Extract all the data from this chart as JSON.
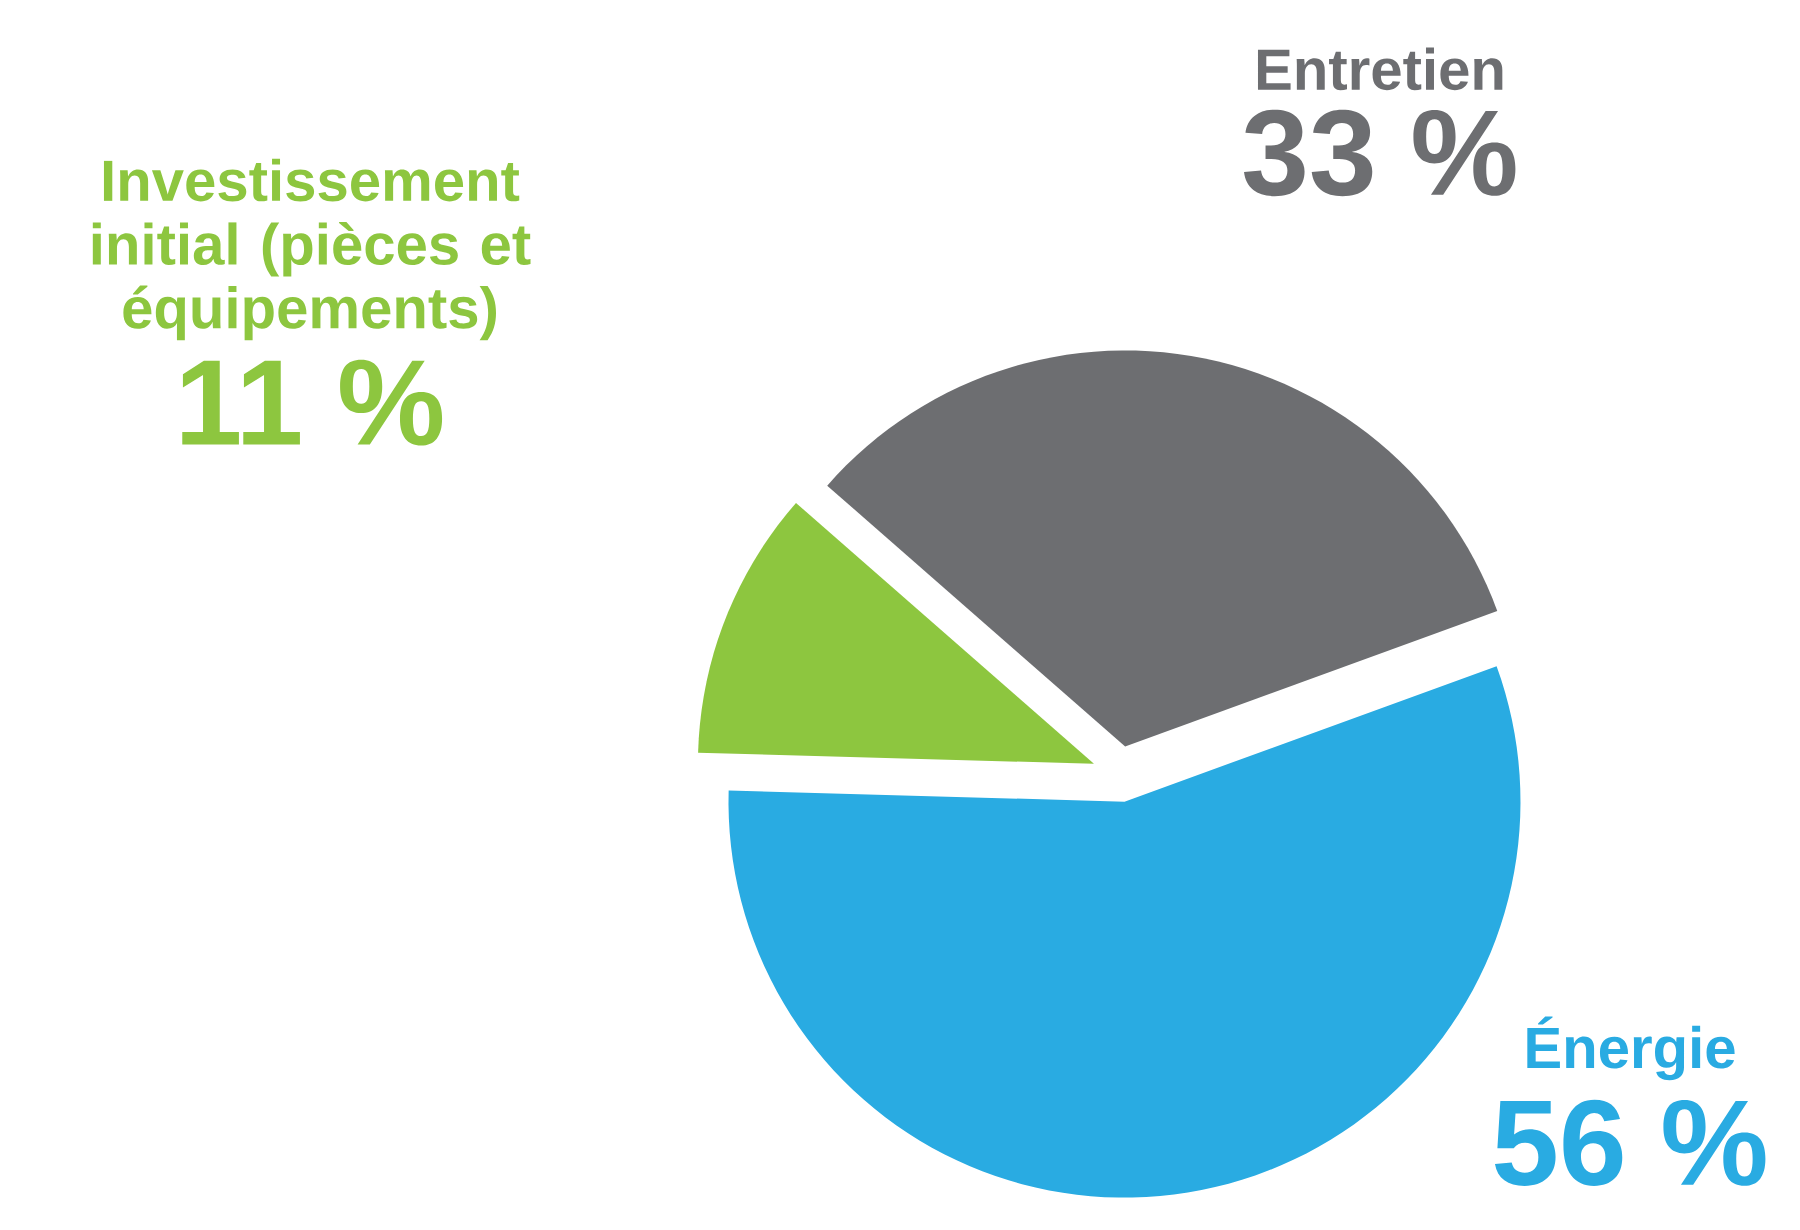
{
  "chart_data": {
    "type": "pie",
    "categories": [
      "Entretien",
      "Investissement initial (pièces et équipements)",
      "Énergie"
    ],
    "values": [
      33,
      11,
      56
    ],
    "value_labels": [
      "33 %",
      "11 %",
      "56 %"
    ],
    "colors": [
      "#6d6e71",
      "#8dc63f",
      "#29abe2"
    ]
  }
}
